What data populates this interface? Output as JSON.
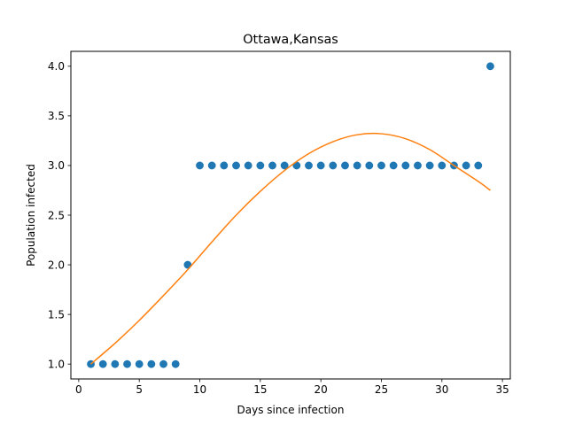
{
  "chart_data": {
    "type": "scatter",
    "title": "Ottawa,Kansas",
    "xlabel": "Days since infection",
    "ylabel": "Population infected",
    "xlim": [
      -0.65,
      35.65
    ],
    "ylim": [
      0.85,
      4.15
    ],
    "xticks": [
      0,
      5,
      10,
      15,
      20,
      25,
      30,
      35
    ],
    "yticks": [
      1.0,
      1.5,
      2.0,
      2.5,
      3.0,
      3.5,
      4.0
    ],
    "xtick_labels": [
      "0",
      "5",
      "10",
      "15",
      "20",
      "25",
      "30",
      "35"
    ],
    "ytick_labels": [
      "1.0",
      "1.5",
      "2.0",
      "2.5",
      "3.0",
      "3.5",
      "4.0"
    ],
    "grid": false,
    "series": [
      {
        "kind": "scatter",
        "color": "#1f77b4",
        "x": [
          1,
          2,
          3,
          4,
          5,
          6,
          7,
          8,
          9,
          10,
          11,
          12,
          13,
          14,
          15,
          16,
          17,
          18,
          19,
          20,
          21,
          22,
          23,
          24,
          25,
          26,
          27,
          28,
          29,
          30,
          31,
          32,
          33,
          34
        ],
        "y": [
          1,
          1,
          1,
          1,
          1,
          1,
          1,
          1,
          2,
          3,
          3,
          3,
          3,
          3,
          3,
          3,
          3,
          3,
          3,
          3,
          3,
          3,
          3,
          3,
          3,
          3,
          3,
          3,
          3,
          3,
          3,
          3,
          3,
          4
        ]
      },
      {
        "kind": "line",
        "color": "#ff7f0e",
        "x": [
          1,
          3,
          5,
          7,
          9,
          11,
          13,
          15,
          17,
          19,
          21,
          23,
          25,
          27,
          29,
          31,
          33,
          34
        ],
        "y": [
          1.0,
          1.21,
          1.44,
          1.69,
          1.95,
          2.23,
          2.5,
          2.74,
          2.95,
          3.12,
          3.24,
          3.31,
          3.32,
          3.27,
          3.16,
          3.0,
          2.84,
          2.75
        ]
      }
    ]
  }
}
